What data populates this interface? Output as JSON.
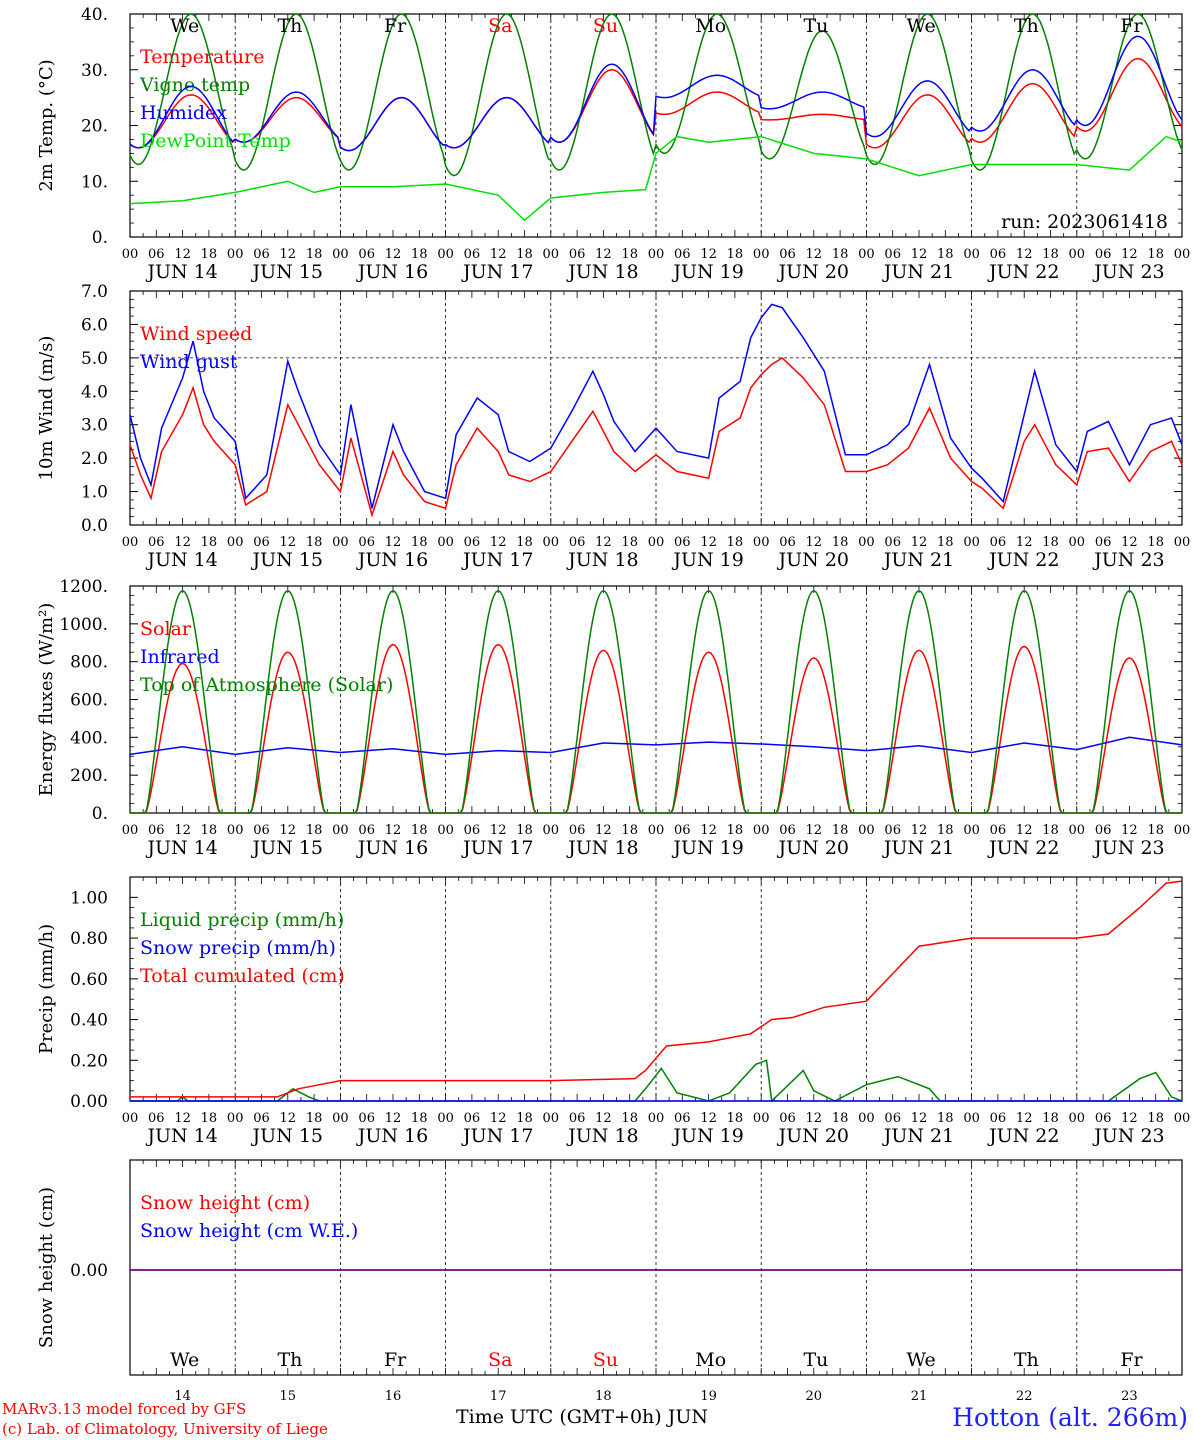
{
  "days": [
    {
      "date": "JUN 14",
      "dow": "We",
      "weekend": false,
      "num": "14"
    },
    {
      "date": "JUN 15",
      "dow": "Th",
      "weekend": false,
      "num": "15"
    },
    {
      "date": "JUN 16",
      "dow": "Fr",
      "weekend": false,
      "num": "16"
    },
    {
      "date": "JUN 17",
      "dow": "Sa",
      "weekend": true,
      "num": "17"
    },
    {
      "date": "JUN 18",
      "dow": "Su",
      "weekend": true,
      "num": "18"
    },
    {
      "date": "JUN 19",
      "dow": "Mo",
      "weekend": false,
      "num": "19"
    },
    {
      "date": "JUN 20",
      "dow": "Tu",
      "weekend": false,
      "num": "20"
    },
    {
      "date": "JUN 21",
      "dow": "We",
      "weekend": false,
      "num": "21"
    },
    {
      "date": "JUN 22",
      "dow": "Th",
      "weekend": false,
      "num": "22"
    },
    {
      "date": "JUN 23",
      "dow": "Fr",
      "weekend": false,
      "num": "23"
    }
  ],
  "hour_ticks": [
    "00",
    "06",
    "12",
    "18"
  ],
  "final_tick": "00",
  "run_label": "run: 2023061418",
  "footer": {
    "credit_line1": "MARv3.13 model forced by GFS",
    "credit_line2": "(c) Lab. of Climatology, University of Liege",
    "x_title": "Time UTC (GMT+0h) JUN",
    "station": "Hotton (alt. 266m)"
  },
  "colors": {
    "red": "#ff0000",
    "green": "#008000",
    "blue": "#0000ff",
    "light_green": "#00e000",
    "purple": "#7f007f",
    "weekend": "#ff0000"
  },
  "chart_data": [
    {
      "id": "temperature",
      "type": "line",
      "ylabel": "2m Temp. (°C)",
      "ylim": [
        0,
        40
      ],
      "yticks": [
        "0.",
        "10.",
        "20.",
        "30.",
        "40."
      ],
      "ytick_values": [
        0,
        10,
        20,
        30,
        40
      ],
      "x_unit": "days since JUN 14 00 UTC",
      "xlim": [
        0,
        10
      ],
      "series": [
        {
          "name": "Temperature",
          "color": "red",
          "kind": "diurnal",
          "min": [
            16,
            17,
            15.5,
            16,
            17,
            22,
            21,
            16,
            17,
            19
          ],
          "max": [
            25.5,
            25,
            25,
            25,
            30,
            26,
            22,
            25.5,
            27.5,
            32
          ]
        },
        {
          "name": "Vigne temp",
          "color": "green",
          "kind": "diurnal",
          "min": [
            13,
            12,
            12,
            11,
            12,
            15,
            14,
            13,
            12,
            14
          ],
          "max": [
            40,
            40,
            40,
            40,
            40,
            40,
            37,
            40,
            40,
            40
          ]
        },
        {
          "name": "Humidex",
          "color": "blue",
          "kind": "diurnal",
          "min": [
            16,
            17,
            15.5,
            16,
            17,
            25,
            23,
            18,
            19,
            20
          ],
          "max": [
            27,
            26,
            25,
            25,
            31,
            29,
            26,
            28,
            30,
            36
          ]
        },
        {
          "name": "DewPoint Temp",
          "color": "light_green",
          "kind": "points",
          "x": [
            0,
            0.5,
            1,
            1.5,
            1.75,
            2,
            2.5,
            3,
            3.5,
            3.75,
            4,
            4.5,
            4.9,
            5.0,
            5.2,
            5.5,
            6,
            6.5,
            7,
            7.5,
            8,
            8.5,
            9,
            9.5,
            9.85,
            10
          ],
          "y": [
            6,
            6.5,
            8,
            10,
            8,
            9,
            9,
            9.5,
            7.5,
            3,
            7,
            8,
            8.5,
            15,
            18,
            17,
            18,
            15,
            14,
            11,
            13,
            13,
            13,
            12,
            18,
            17
          ]
        }
      ],
      "legend_placement": "upper-left"
    },
    {
      "id": "wind",
      "type": "line",
      "ylabel": "10m Wind (m/s)",
      "ylim": [
        0,
        7
      ],
      "yticks": [
        "0.0",
        "1.0",
        "2.0",
        "3.0",
        "4.0",
        "5.0",
        "6.0",
        "7.0"
      ],
      "ytick_values": [
        0,
        1,
        2,
        3,
        4,
        5,
        6,
        7
      ],
      "ref_line": 5,
      "xlim": [
        0,
        10
      ],
      "series": [
        {
          "name": "Wind speed",
          "color": "red",
          "x": [
            0,
            0.1,
            0.2,
            0.3,
            0.5,
            0.6,
            0.7,
            0.8,
            1,
            1.1,
            1.3,
            1.5,
            1.6,
            1.8,
            2,
            2.1,
            2.3,
            2.5,
            2.6,
            2.8,
            3,
            3.1,
            3.3,
            3.5,
            3.6,
            3.8,
            4,
            4.2,
            4.4,
            4.5,
            4.6,
            4.8,
            5,
            5.2,
            5.5,
            5.6,
            5.8,
            5.9,
            6,
            6.1,
            6.2,
            6.4,
            6.6,
            6.8,
            7,
            7.2,
            7.4,
            7.6,
            7.8,
            8,
            8.1,
            8.3,
            8.5,
            8.6,
            8.8,
            9,
            9.1,
            9.3,
            9.5,
            9.7,
            9.9,
            10
          ],
          "y": [
            2.4,
            1.5,
            0.8,
            2.2,
            3.3,
            4.1,
            3,
            2.5,
            1.8,
            0.6,
            1,
            3.6,
            3,
            1.8,
            1,
            2.6,
            0.3,
            2.2,
            1.5,
            0.7,
            0.5,
            1.8,
            2.9,
            2.2,
            1.5,
            1.3,
            1.6,
            2.5,
            3.4,
            2.8,
            2.2,
            1.6,
            2.1,
            1.6,
            1.4,
            2.8,
            3.2,
            4.1,
            4.5,
            4.8,
            5,
            4.4,
            3.6,
            1.6,
            1.6,
            1.8,
            2.3,
            3.5,
            2,
            1.3,
            1.1,
            0.5,
            2.5,
            3,
            1.8,
            1.2,
            2.2,
            2.3,
            1.3,
            2.2,
            2.5,
            1.8
          ]
        },
        {
          "name": "Wind gust",
          "color": "blue",
          "x": [
            0,
            0.1,
            0.2,
            0.3,
            0.5,
            0.6,
            0.7,
            0.8,
            1,
            1.1,
            1.3,
            1.5,
            1.6,
            1.8,
            2,
            2.1,
            2.3,
            2.5,
            2.6,
            2.8,
            3,
            3.1,
            3.3,
            3.5,
            3.6,
            3.8,
            4,
            4.2,
            4.4,
            4.5,
            4.6,
            4.8,
            5,
            5.2,
            5.5,
            5.6,
            5.8,
            5.9,
            6,
            6.1,
            6.2,
            6.4,
            6.6,
            6.8,
            7,
            7.2,
            7.4,
            7.6,
            7.8,
            8,
            8.1,
            8.3,
            8.5,
            8.6,
            8.8,
            9,
            9.1,
            9.3,
            9.5,
            9.7,
            9.9,
            10
          ],
          "y": [
            3.3,
            2,
            1.2,
            2.9,
            4.4,
            5.5,
            4,
            3.2,
            2.5,
            0.8,
            1.5,
            4.9,
            4,
            2.4,
            1.5,
            3.6,
            0.5,
            3,
            2.2,
            1,
            0.8,
            2.7,
            3.8,
            3.3,
            2.2,
            1.9,
            2.3,
            3.4,
            4.6,
            3.9,
            3.1,
            2.2,
            2.9,
            2.2,
            2,
            3.8,
            4.3,
            5.6,
            6.2,
            6.6,
            6.5,
            5.6,
            4.6,
            2.1,
            2.1,
            2.4,
            3,
            4.8,
            2.6,
            1.7,
            1.4,
            0.7,
            3.3,
            4.6,
            2.4,
            1.6,
            2.8,
            3.1,
            1.8,
            3,
            3.2,
            2.4
          ]
        }
      ],
      "legend_placement": "upper-left"
    },
    {
      "id": "energy",
      "type": "line",
      "ylabel": "Energy fluxes (W/m²)",
      "ylim": [
        0,
        1200
      ],
      "yticks": [
        "0.",
        "200.",
        "400.",
        "600.",
        "800.",
        "1000.",
        "1200."
      ],
      "ytick_values": [
        0,
        200,
        400,
        600,
        800,
        1000,
        1200
      ],
      "xlim": [
        0,
        10
      ],
      "series": [
        {
          "name": "Solar",
          "color": "red",
          "kind": "diurnal_bell",
          "peak": [
            790,
            850,
            890,
            890,
            860,
            850,
            820,
            860,
            880,
            820
          ]
        },
        {
          "name": "Infrared",
          "color": "blue",
          "x": [
            0,
            0.5,
            1,
            1.5,
            2,
            2.5,
            3,
            3.5,
            4,
            4.5,
            5,
            5.5,
            6,
            6.5,
            7,
            7.5,
            8,
            8.5,
            9,
            9.5,
            10
          ],
          "y": [
            310,
            350,
            310,
            345,
            320,
            340,
            310,
            330,
            320,
            370,
            360,
            375,
            365,
            350,
            330,
            355,
            320,
            370,
            335,
            400,
            360
          ]
        },
        {
          "name": "Top of Atmosphere (Solar)",
          "color": "green",
          "kind": "diurnal_bell",
          "peak": [
            1175,
            1175,
            1175,
            1175,
            1175,
            1175,
            1175,
            1175,
            1175,
            1175
          ]
        }
      ],
      "legend_placement": "upper-left"
    },
    {
      "id": "precip",
      "type": "line",
      "ylabel": "Precip (mm/h)",
      "ylim": [
        0,
        1.1
      ],
      "yticks": [
        "0.00",
        "0.20",
        "0.40",
        "0.60",
        "0.80",
        "1.00"
      ],
      "ytick_values": [
        0,
        0.2,
        0.4,
        0.6,
        0.8,
        1.0
      ],
      "xlim": [
        0,
        10
      ],
      "series": [
        {
          "name": "Liquid precip (mm/h)",
          "color": "green",
          "x": [
            0,
            0.45,
            0.5,
            0.55,
            1.4,
            1.55,
            1.7,
            1.8,
            4.8,
            4.9,
            5.05,
            5.2,
            5.5,
            5.7,
            5.95,
            6.05,
            6.1,
            6.4,
            6.5,
            6.7,
            7.0,
            7.3,
            7.6,
            7.7,
            9.3,
            9.6,
            9.75,
            9.9,
            10
          ],
          "y": [
            0,
            0,
            0.02,
            0,
            0,
            0.06,
            0.02,
            0,
            0,
            0.06,
            0.16,
            0.04,
            0,
            0.04,
            0.18,
            0.2,
            0,
            0.15,
            0.05,
            0,
            0.08,
            0.12,
            0.06,
            0,
            0,
            0.11,
            0.14,
            0.02,
            0
          ]
        },
        {
          "name": "Snow precip (mm/h)",
          "color": "blue",
          "x": [
            0,
            10
          ],
          "y": [
            0,
            0
          ]
        },
        {
          "name": "Total cumulated (cm)",
          "color": "red",
          "x": [
            0,
            1.4,
            1.6,
            1.9,
            2,
            2.5,
            3,
            4,
            4.8,
            4.9,
            5.1,
            5.5,
            5.9,
            6.1,
            6.3,
            6.6,
            7,
            7.5,
            8,
            8.5,
            9,
            9.3,
            9.6,
            9.85,
            10
          ],
          "y": [
            0.02,
            0.02,
            0.06,
            0.09,
            0.1,
            0.1,
            0.1,
            0.1,
            0.11,
            0.15,
            0.27,
            0.29,
            0.33,
            0.4,
            0.41,
            0.46,
            0.49,
            0.76,
            0.8,
            0.8,
            0.8,
            0.82,
            0.95,
            1.07,
            1.08
          ]
        }
      ],
      "legend_placement": "upper-left"
    },
    {
      "id": "snow",
      "type": "line",
      "ylabel": "Snow height (cm)",
      "yticks": [
        "0.00"
      ],
      "ytick_values": [
        0
      ],
      "xlim": [
        0,
        10
      ],
      "series": [
        {
          "name": "Snow height (cm)",
          "color": "red",
          "x": [
            0,
            10
          ],
          "y": [
            0,
            0
          ]
        },
        {
          "name": "Snow height (cm W.E.)",
          "color": "blue",
          "x": [
            0,
            10
          ],
          "y": [
            0,
            0
          ]
        }
      ],
      "legend_placement": "upper-left"
    }
  ]
}
